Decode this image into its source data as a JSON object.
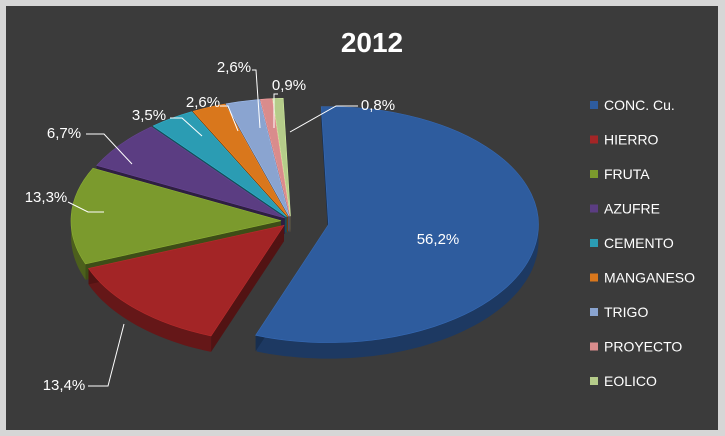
{
  "chart_data": {
    "type": "pie",
    "title": "2012",
    "categories": [
      "CONC. Cu.",
      "HIERRO",
      "FRUTA",
      "AZUFRE",
      "CEMENTO",
      "MANGANESO",
      "TRIGO",
      "PROYECTO",
      "EOLICO"
    ],
    "values": [
      56.2,
      13.4,
      13.3,
      6.7,
      3.5,
      2.6,
      2.6,
      0.9,
      0.8
    ],
    "labels": [
      "56,2%",
      "13,4%",
      "13,3%",
      "6,7%",
      "3,5%",
      "2,6%",
      "2,6%",
      "0,9%",
      "0,8%"
    ],
    "colors": [
      "#2e5c9e",
      "#a32526",
      "#7b9a2d",
      "#5b3d82",
      "#2b9cb3",
      "#d9771c",
      "#8aa4d0",
      "#d98c8c",
      "#b5cc8a"
    ],
    "legend_position": "right",
    "exploded": true
  }
}
